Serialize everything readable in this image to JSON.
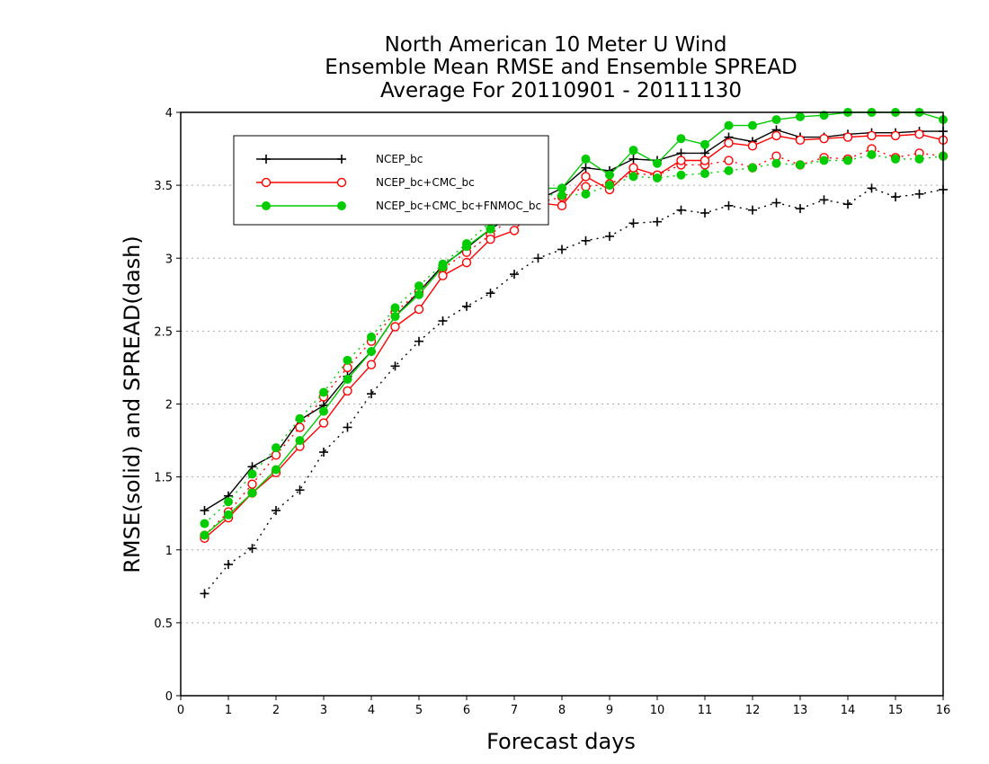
{
  "chart_data": {
    "type": "line",
    "title": [
      "North American 10 Meter U Wind",
      "Ensemble Mean RMSE and Ensemble SPREAD",
      "Average For 20110901 - 20111130"
    ],
    "xlabel": "Forecast days",
    "ylabel": "RMSE(solid) and SPREAD(dash)",
    "xlim": [
      0,
      16
    ],
    "ylim": [
      0,
      4
    ],
    "xticks": [
      "0",
      "1",
      "2",
      "3",
      "4",
      "5",
      "6",
      "7",
      "8",
      "9",
      "10",
      "11",
      "12",
      "13",
      "14",
      "15",
      "16"
    ],
    "yticks": [
      "0",
      "0.5",
      "1",
      "1.5",
      "2",
      "2.5",
      "3",
      "3.5",
      "4"
    ],
    "grid": "horizontal dotted",
    "legend_position": "top-left",
    "x": [
      0.5,
      1,
      1.5,
      2,
      2.5,
      3,
      3.5,
      4,
      4.5,
      5,
      5.5,
      6,
      6.5,
      7,
      7.5,
      8,
      8.5,
      9,
      9.5,
      10,
      10.5,
      11,
      11.5,
      12,
      12.5,
      13,
      13.5,
      14,
      14.5,
      15,
      15.5,
      16
    ],
    "series": [
      {
        "name": "NCEP_bc",
        "color": "#000000",
        "marker": "plus",
        "rmse": [
          1.27,
          1.37,
          1.57,
          1.66,
          1.89,
          1.99,
          2.19,
          2.36,
          2.6,
          2.77,
          2.95,
          3.07,
          3.2,
          3.3,
          3.4,
          3.48,
          3.62,
          3.6,
          3.68,
          3.67,
          3.72,
          3.72,
          3.83,
          3.8,
          3.88,
          3.83,
          3.83,
          3.85,
          3.86,
          3.86,
          3.87,
          3.87
        ],
        "spread": [
          0.7,
          0.9,
          1.01,
          1.27,
          1.41,
          1.67,
          1.84,
          2.07,
          2.26,
          2.43,
          2.57,
          2.67,
          2.76,
          2.89,
          3.0,
          3.06,
          3.12,
          3.15,
          3.24,
          3.25,
          3.33,
          3.31,
          3.36,
          3.33,
          3.38,
          3.34,
          3.4,
          3.37,
          3.48,
          3.42,
          3.44,
          3.47
        ]
      },
      {
        "name": "NCEP_bc+CMC_bc",
        "color": "#ff0000",
        "marker": "open-circle",
        "rmse": [
          1.08,
          1.22,
          1.39,
          1.53,
          1.71,
          1.87,
          2.09,
          2.27,
          2.53,
          2.65,
          2.88,
          2.97,
          3.13,
          3.19,
          3.38,
          3.36,
          3.56,
          3.47,
          3.62,
          3.57,
          3.67,
          3.67,
          3.79,
          3.77,
          3.84,
          3.81,
          3.82,
          3.83,
          3.84,
          3.84,
          3.85,
          3.81
        ],
        "spread": [
          1.1,
          1.26,
          1.45,
          1.65,
          1.84,
          2.05,
          2.25,
          2.43,
          2.63,
          2.77,
          2.93,
          3.04,
          3.16,
          3.3,
          3.38,
          3.42,
          3.49,
          3.51,
          3.58,
          3.57,
          3.64,
          3.64,
          3.67,
          3.62,
          3.7,
          3.64,
          3.69,
          3.68,
          3.75,
          3.69,
          3.72,
          3.7
        ]
      },
      {
        "name": "NCEP_bc+CMC_bc+FNMOC_bc",
        "color": "#00cc00",
        "marker": "filled-circle",
        "rmse": [
          1.1,
          1.24,
          1.39,
          1.55,
          1.75,
          1.95,
          2.17,
          2.36,
          2.6,
          2.75,
          2.94,
          3.08,
          3.2,
          3.33,
          3.48,
          3.48,
          3.68,
          3.57,
          3.74,
          3.65,
          3.82,
          3.78,
          3.91,
          3.91,
          3.95,
          3.97,
          3.98,
          4.0,
          4.0,
          4.0,
          4.0,
          3.95
        ],
        "spread": [
          1.18,
          1.33,
          1.52,
          1.7,
          1.9,
          2.08,
          2.3,
          2.46,
          2.66,
          2.81,
          2.96,
          3.1,
          3.25,
          3.36,
          3.44,
          3.43,
          3.44,
          3.5,
          3.56,
          3.55,
          3.57,
          3.58,
          3.6,
          3.62,
          3.65,
          3.64,
          3.67,
          3.67,
          3.71,
          3.68,
          3.68,
          3.7
        ]
      }
    ]
  }
}
